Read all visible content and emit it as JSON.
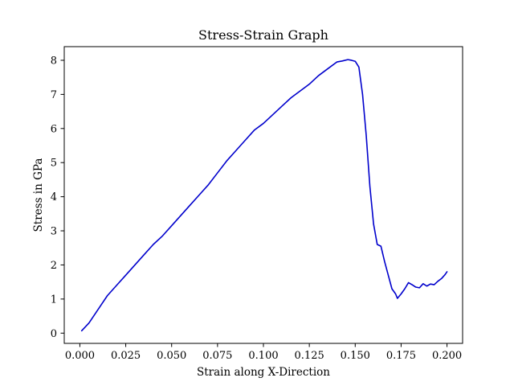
{
  "chart_data": {
    "type": "line",
    "title": "Stress-Strain Graph",
    "xlabel": "Strain along X-Direction",
    "ylabel": "Stress in GPa",
    "xlim": [
      -0.0085,
      0.2085
    ],
    "ylim": [
      -0.3,
      8.4
    ],
    "xticks": [
      0.0,
      0.025,
      0.05,
      0.075,
      0.1,
      0.125,
      0.15,
      0.175,
      0.2
    ],
    "xtick_labels": [
      "0.000",
      "0.025",
      "0.050",
      "0.075",
      "0.100",
      "0.125",
      "0.150",
      "0.175",
      "0.200"
    ],
    "yticks": [
      0,
      1,
      2,
      3,
      4,
      5,
      6,
      7,
      8
    ],
    "ytick_labels": [
      "0",
      "1",
      "2",
      "3",
      "4",
      "5",
      "6",
      "7",
      "8"
    ],
    "grid": false,
    "line_color": "#0000cc",
    "series": [
      {
        "x": [
          0.001,
          0.005,
          0.01,
          0.015,
          0.02,
          0.025,
          0.03,
          0.035,
          0.04,
          0.045,
          0.05,
          0.055,
          0.06,
          0.065,
          0.07,
          0.075,
          0.08,
          0.085,
          0.09,
          0.095,
          0.1,
          0.105,
          0.11,
          0.115,
          0.12,
          0.125,
          0.13,
          0.135,
          0.14,
          0.143,
          0.146,
          0.148,
          0.15,
          0.152,
          0.154,
          0.156,
          0.158,
          0.16,
          0.162,
          0.164,
          0.166,
          0.168,
          0.17,
          0.172,
          0.173,
          0.175,
          0.177,
          0.179,
          0.181,
          0.183,
          0.185,
          0.187,
          0.189,
          0.191,
          0.193,
          0.195,
          0.197,
          0.199,
          0.2
        ],
        "y": [
          0.07,
          0.3,
          0.7,
          1.1,
          1.4,
          1.7,
          2.0,
          2.3,
          2.6,
          2.85,
          3.15,
          3.45,
          3.75,
          4.05,
          4.35,
          4.7,
          5.05,
          5.35,
          5.65,
          5.95,
          6.15,
          6.4,
          6.65,
          6.9,
          7.1,
          7.3,
          7.55,
          7.75,
          7.95,
          7.98,
          8.02,
          8.0,
          7.97,
          7.8,
          7.0,
          5.8,
          4.3,
          3.2,
          2.6,
          2.55,
          2.1,
          1.7,
          1.3,
          1.15,
          1.02,
          1.15,
          1.3,
          1.48,
          1.42,
          1.35,
          1.33,
          1.45,
          1.38,
          1.44,
          1.42,
          1.52,
          1.6,
          1.72,
          1.8
        ]
      }
    ]
  }
}
